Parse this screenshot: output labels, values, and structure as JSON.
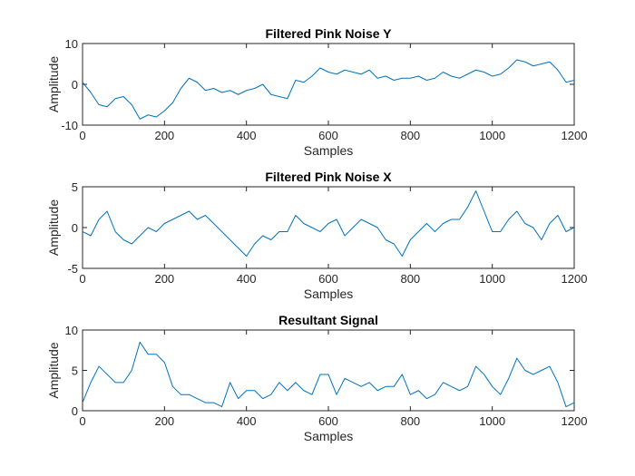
{
  "figure": {
    "background": "#ffffff",
    "line_color": "#0072bd"
  },
  "chart_data": [
    {
      "type": "line",
      "title": "Filtered Pink Noise Y",
      "xlabel": "Samples",
      "ylabel": "Amplitude",
      "xlim": [
        0,
        1200
      ],
      "ylim": [
        -10,
        10
      ],
      "xticks": [
        0,
        200,
        400,
        600,
        800,
        1000,
        1200
      ],
      "yticks": [
        -10,
        0,
        10
      ],
      "xtick_labels": [
        "0",
        "200",
        "400",
        "600",
        "800",
        "1000",
        "1200"
      ],
      "ytick_labels": [
        "-10",
        "0",
        "10"
      ],
      "grid": false,
      "series": [
        {
          "color": "#0072bd",
          "x": [
            0,
            20,
            40,
            60,
            80,
            100,
            120,
            140,
            160,
            180,
            200,
            220,
            240,
            260,
            280,
            300,
            320,
            340,
            360,
            380,
            400,
            420,
            440,
            460,
            480,
            500,
            520,
            540,
            560,
            580,
            600,
            620,
            640,
            660,
            680,
            700,
            720,
            740,
            760,
            780,
            800,
            820,
            840,
            860,
            880,
            900,
            920,
            940,
            960,
            980,
            1000,
            1020,
            1040,
            1060,
            1080,
            1100,
            1120,
            1140,
            1160,
            1180,
            1200
          ],
          "values": [
            0.5,
            -2,
            -5,
            -5.5,
            -3.5,
            -3,
            -5,
            -8.5,
            -7.5,
            -8,
            -6.5,
            -4.5,
            -1,
            1.5,
            0.5,
            -1.5,
            -1,
            -2,
            -1.5,
            -2.5,
            -1.5,
            -1,
            0,
            -2.5,
            -3,
            -3.5,
            1,
            0.5,
            2,
            4,
            3,
            2.5,
            3.5,
            3,
            2.5,
            3.5,
            1.5,
            2,
            1,
            1.5,
            1.5,
            2,
            1,
            1.5,
            3,
            2,
            1.5,
            2.5,
            3.5,
            3,
            2,
            2.5,
            4,
            6,
            5.5,
            4.5,
            5,
            5.5,
            3.5,
            0.5,
            1
          ]
        }
      ]
    },
    {
      "type": "line",
      "title": "Filtered Pink Noise X",
      "xlabel": "Samples",
      "ylabel": "Amplitude",
      "xlim": [
        0,
        1200
      ],
      "ylim": [
        -5,
        5
      ],
      "xticks": [
        0,
        200,
        400,
        600,
        800,
        1000,
        1200
      ],
      "yticks": [
        -5,
        0,
        5
      ],
      "xtick_labels": [
        "0",
        "200",
        "400",
        "600",
        "800",
        "1000",
        "1200"
      ],
      "ytick_labels": [
        "-5",
        "0",
        "5"
      ],
      "grid": false,
      "series": [
        {
          "color": "#0072bd",
          "x": [
            0,
            20,
            40,
            60,
            80,
            100,
            120,
            140,
            160,
            180,
            200,
            220,
            240,
            260,
            280,
            300,
            320,
            340,
            360,
            380,
            400,
            420,
            440,
            460,
            480,
            500,
            520,
            540,
            560,
            580,
            600,
            620,
            640,
            660,
            680,
            700,
            720,
            740,
            760,
            780,
            800,
            820,
            840,
            860,
            880,
            900,
            920,
            940,
            960,
            980,
            1000,
            1020,
            1040,
            1060,
            1080,
            1100,
            1120,
            1140,
            1160,
            1180,
            1200
          ],
          "values": [
            -0.5,
            -1,
            1,
            2,
            -0.5,
            -1.5,
            -2,
            -1,
            0,
            -0.5,
            0.5,
            1,
            1.5,
            2,
            1,
            1.5,
            0.5,
            -0.5,
            -1.5,
            -2.5,
            -3.5,
            -2,
            -1,
            -1.5,
            -0.5,
            -0.5,
            1.5,
            0.5,
            0,
            -0.5,
            0.5,
            1,
            -1,
            0,
            1,
            0.5,
            0,
            -1.5,
            -2,
            -3.5,
            -1.5,
            -0.5,
            0.5,
            -0.5,
            0.5,
            1,
            1,
            2.5,
            4.5,
            2,
            -0.5,
            -0.5,
            1,
            2,
            0.5,
            0,
            -1.5,
            0.5,
            1.5,
            -0.5,
            0
          ]
        }
      ]
    },
    {
      "type": "line",
      "title": "Resultant Signal",
      "xlabel": "Samples",
      "ylabel": "Amplitude",
      "xlim": [
        0,
        1200
      ],
      "ylim": [
        0,
        10
      ],
      "xticks": [
        0,
        200,
        400,
        600,
        800,
        1000,
        1200
      ],
      "yticks": [
        0,
        5,
        10
      ],
      "xtick_labels": [
        "0",
        "200",
        "400",
        "600",
        "800",
        "1000",
        "1200"
      ],
      "ytick_labels": [
        "0",
        "5",
        "10"
      ],
      "grid": false,
      "series": [
        {
          "color": "#0072bd",
          "x": [
            0,
            20,
            40,
            60,
            80,
            100,
            120,
            140,
            160,
            180,
            200,
            220,
            240,
            260,
            280,
            300,
            320,
            340,
            360,
            380,
            400,
            420,
            440,
            460,
            480,
            500,
            520,
            540,
            560,
            580,
            600,
            620,
            640,
            660,
            680,
            700,
            720,
            740,
            760,
            780,
            800,
            820,
            840,
            860,
            880,
            900,
            920,
            940,
            960,
            980,
            1000,
            1020,
            1040,
            1060,
            1080,
            1100,
            1120,
            1140,
            1160,
            1180,
            1200
          ],
          "values": [
            1,
            3.5,
            5.5,
            4.5,
            3.5,
            3.5,
            5,
            8.5,
            7,
            7,
            6,
            3,
            2,
            2,
            1.5,
            1,
            1,
            0.5,
            3.5,
            1.5,
            2.5,
            2.5,
            1.5,
            2,
            3.5,
            2.5,
            3.5,
            2.5,
            2,
            4.5,
            4.5,
            2,
            4,
            3.5,
            3,
            3.5,
            2.5,
            3,
            3,
            4.5,
            2,
            2.5,
            1.5,
            2,
            3.5,
            3,
            2.5,
            3,
            5.5,
            4.5,
            3,
            2,
            4,
            6.5,
            5,
            4.5,
            5,
            5.5,
            3.5,
            0.5,
            1
          ]
        }
      ]
    }
  ]
}
